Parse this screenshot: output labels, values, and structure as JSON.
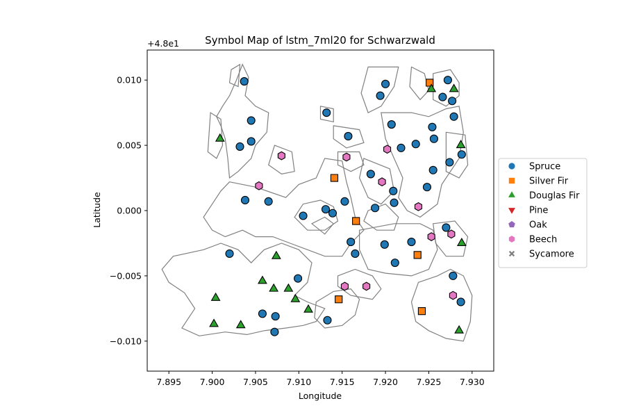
{
  "chart_data": {
    "type": "scatter",
    "title": "Symbol Map of lstm_7ml20 for Schwarzwald",
    "xlabel": "Longitude",
    "ylabel": "Latitude",
    "offset_label": "+4.8e1",
    "xlim": [
      7.8925,
      7.9325
    ],
    "ylim": [
      -0.0123,
      0.0123
    ],
    "xticks": [
      "7.895",
      "7.900",
      "7.905",
      "7.910",
      "7.915",
      "7.920",
      "7.925",
      "7.930"
    ],
    "xtick_values": [
      7.895,
      7.9,
      7.905,
      7.91,
      7.915,
      7.92,
      7.925,
      7.93
    ],
    "yticks": [
      "0.010",
      "0.005",
      "0.000",
      "−0.005",
      "−0.010"
    ],
    "ytick_values": [
      0.01,
      0.005,
      0.0,
      -0.005,
      -0.01
    ],
    "legend_position": "center-right outside",
    "series": [
      {
        "name": "Spruce",
        "marker": "circle",
        "color": "#1f77b4",
        "points": [
          [
            7.9037,
            0.0099
          ],
          [
            7.9045,
            0.0069
          ],
          [
            7.9045,
            0.0053
          ],
          [
            7.9032,
            0.0049
          ],
          [
            7.9038,
            0.0008
          ],
          [
            7.9065,
            0.0007
          ],
          [
            7.9105,
            -0.0004
          ],
          [
            7.9131,
            0.0001
          ],
          [
            7.9139,
            -0.0002
          ],
          [
            7.9153,
            0.0007
          ],
          [
            7.9132,
            0.0075
          ],
          [
            7.9157,
            0.0057
          ],
          [
            7.9183,
            0.0028
          ],
          [
            7.9188,
            0.0002
          ],
          [
            7.9209,
            0.0015
          ],
          [
            7.921,
            0.0006
          ],
          [
            7.92,
            0.0097
          ],
          [
            7.9194,
            0.0088
          ],
          [
            7.9207,
            0.0066
          ],
          [
            7.9218,
            0.0048
          ],
          [
            7.9235,
            0.0051
          ],
          [
            7.9254,
            0.0064
          ],
          [
            7.9256,
            0.0055
          ],
          [
            7.9255,
            0.0031
          ],
          [
            7.9248,
            0.0018
          ],
          [
            7.9272,
            0.01
          ],
          [
            7.9266,
            0.0087
          ],
          [
            7.9277,
            0.0084
          ],
          [
            7.9279,
            0.0072
          ],
          [
            7.9274,
            0.0037
          ],
          [
            7.9288,
            0.0043
          ],
          [
            7.916,
            -0.0024
          ],
          [
            7.9165,
            -0.0033
          ],
          [
            7.9199,
            -0.0026
          ],
          [
            7.923,
            -0.0024
          ],
          [
            7.9211,
            -0.004
          ],
          [
            7.927,
            -0.0013
          ],
          [
            7.9278,
            -0.005
          ],
          [
            7.9287,
            -0.007
          ],
          [
            7.9099,
            -0.0052
          ],
          [
            7.902,
            -0.0033
          ],
          [
            7.9058,
            -0.0079
          ],
          [
            7.9073,
            -0.0081
          ],
          [
            7.9072,
            -0.0093
          ],
          [
            7.9133,
            -0.0084
          ]
        ]
      },
      {
        "name": "Silver Fir",
        "marker": "square",
        "color": "#ff7f0e",
        "points": [
          [
            7.9141,
            0.0025
          ],
          [
            7.9166,
            -0.0008
          ],
          [
            7.9251,
            0.0098
          ],
          [
            7.9237,
            -0.0034
          ],
          [
            7.9146,
            -0.0068
          ],
          [
            7.9242,
            -0.0077
          ]
        ]
      },
      {
        "name": "Douglas Fir",
        "marker": "triangle-up",
        "color": "#2ca02c",
        "points": [
          [
            7.9009,
            0.0055
          ],
          [
            7.9253,
            0.0093
          ],
          [
            7.9279,
            0.0093
          ],
          [
            7.9287,
            0.005
          ],
          [
            7.9288,
            -0.0025
          ],
          [
            7.9074,
            -0.0035
          ],
          [
            7.9058,
            -0.0054
          ],
          [
            7.9071,
            -0.006
          ],
          [
            7.9088,
            -0.006
          ],
          [
            7.9096,
            -0.0068
          ],
          [
            7.9004,
            -0.0067
          ],
          [
            7.9002,
            -0.0087
          ],
          [
            7.9033,
            -0.0088
          ],
          [
            7.9111,
            -0.0076
          ],
          [
            7.9285,
            -0.0092
          ]
        ]
      },
      {
        "name": "Pine",
        "marker": "triangle-down",
        "color": "#d62728",
        "points": []
      },
      {
        "name": "Oak",
        "marker": "pentagon",
        "color": "#9467bd",
        "points": []
      },
      {
        "name": "Beech",
        "marker": "hexagon",
        "color": "#e377c2",
        "points": [
          [
            7.908,
            0.0042
          ],
          [
            7.9155,
            0.0041
          ],
          [
            7.9054,
            0.0019
          ],
          [
            7.9202,
            0.0047
          ],
          [
            7.9196,
            0.0022
          ],
          [
            7.9238,
            0.0003
          ],
          [
            7.9253,
            -0.002
          ],
          [
            7.9276,
            -0.0018
          ],
          [
            7.9278,
            -0.0065
          ],
          [
            7.9153,
            -0.0058
          ],
          [
            7.9178,
            -0.0058
          ]
        ]
      },
      {
        "name": "Sycamore",
        "marker": "x",
        "color": "#7f7f7f",
        "points": []
      }
    ],
    "polygons": [
      [
        [
          7.9035,
          0.0112
        ],
        [
          7.9042,
          0.0102
        ],
        [
          7.9038,
          0.0088
        ],
        [
          7.905,
          0.008
        ],
        [
          7.9065,
          0.0075
        ],
        [
          7.9063,
          0.006
        ],
        [
          7.905,
          0.005
        ],
        [
          7.9045,
          0.004
        ],
        [
          7.903,
          0.003
        ],
        [
          7.902,
          0.0025
        ],
        [
          7.9018,
          0.004
        ],
        [
          7.9015,
          0.0055
        ],
        [
          7.901,
          0.0065
        ],
        [
          7.9005,
          0.0072
        ],
        [
          7.9012,
          0.008
        ],
        [
          7.902,
          0.0088
        ],
        [
          7.9028,
          0.01
        ]
      ],
      [
        [
          7.9022,
          0.0108
        ],
        [
          7.9032,
          0.0112
        ],
        [
          7.903,
          0.0095
        ],
        [
          7.902,
          0.0098
        ]
      ],
      [
        [
          7.8998,
          0.0075
        ],
        [
          7.901,
          0.007
        ],
        [
          7.9012,
          0.005
        ],
        [
          7.9005,
          0.004
        ],
        [
          7.8995,
          0.0045
        ]
      ],
      [
        [
          7.902,
          0.0022
        ],
        [
          7.905,
          0.0018
        ],
        [
          7.9085,
          0.001
        ],
        [
          7.91,
          0.002
        ],
        [
          7.912,
          0.0025
        ],
        [
          7.913,
          0.004
        ],
        [
          7.915,
          0.0038
        ],
        [
          7.9155,
          0.0022
        ],
        [
          7.916,
          0.001
        ],
        [
          7.9165,
          -0.0005
        ],
        [
          7.9175,
          -0.0015
        ],
        [
          7.916,
          -0.0025
        ],
        [
          7.915,
          -0.0035
        ],
        [
          7.913,
          -0.0035
        ],
        [
          7.911,
          -0.003
        ],
        [
          7.909,
          -0.0025
        ],
        [
          7.907,
          -0.002
        ],
        [
          7.905,
          -0.002
        ],
        [
          7.9035,
          -0.0015
        ],
        [
          7.9015,
          -0.002
        ],
        [
          7.9,
          -0.0015
        ],
        [
          7.899,
          -0.0005
        ],
        [
          7.9,
          0.0005
        ],
        [
          7.901,
          0.0015
        ]
      ],
      [
        [
          7.9095,
          -0.0005
        ],
        [
          7.9105,
          0.0005
        ],
        [
          7.9125,
          0.0008
        ],
        [
          7.914,
          0.0003
        ],
        [
          7.9145,
          -0.0008
        ],
        [
          7.913,
          -0.0015
        ],
        [
          7.911,
          -0.0015
        ]
      ],
      [
        [
          7.9115,
          -0.001
        ],
        [
          7.913,
          -0.0005
        ],
        [
          7.914,
          -0.001
        ],
        [
          7.913,
          -0.0018
        ]
      ],
      [
        [
          7.9072,
          0.005
        ],
        [
          7.9092,
          0.0045
        ],
        [
          7.9095,
          0.003
        ],
        [
          7.908,
          0.0028
        ],
        [
          7.9065,
          0.0035
        ]
      ],
      [
        [
          7.9125,
          0.008
        ],
        [
          7.914,
          0.0078
        ],
        [
          7.914,
          0.0068
        ],
        [
          7.9125,
          0.007
        ]
      ],
      [
        [
          7.914,
          0.0065
        ],
        [
          7.917,
          0.0062
        ],
        [
          7.9175,
          0.0052
        ],
        [
          7.9155,
          0.0048
        ],
        [
          7.914,
          0.0055
        ]
      ],
      [
        [
          7.9145,
          0.0045
        ],
        [
          7.917,
          0.0045
        ],
        [
          7.9175,
          0.0035
        ],
        [
          7.916,
          0.003
        ],
        [
          7.9145,
          0.0035
        ]
      ],
      [
        [
          7.9175,
          0.004
        ],
        [
          7.9205,
          0.0032
        ],
        [
          7.921,
          0.0015
        ],
        [
          7.9195,
          0.0005
        ],
        [
          7.918,
          0.001
        ],
        [
          7.917,
          0.0025
        ]
      ],
      [
        [
          7.918,
          0.0
        ],
        [
          7.92,
          0.0005
        ],
        [
          7.9215,
          -0.0005
        ],
        [
          7.921,
          -0.0015
        ],
        [
          7.919,
          -0.0015
        ],
        [
          7.9175,
          -0.0008
        ]
      ],
      [
        [
          7.918,
          0.011
        ],
        [
          7.9215,
          0.011
        ],
        [
          7.921,
          0.0095
        ],
        [
          7.9195,
          0.008
        ],
        [
          7.918,
          0.0075
        ],
        [
          7.9172,
          0.009
        ]
      ],
      [
        [
          7.923,
          0.011
        ],
        [
          7.9245,
          0.0105
        ],
        [
          7.925,
          0.0092
        ],
        [
          7.924,
          0.0085
        ],
        [
          7.9228,
          0.0095
        ]
      ],
      [
        [
          7.9195,
          0.0075
        ],
        [
          7.923,
          0.0075
        ],
        [
          7.925,
          0.0072
        ],
        [
          7.927,
          0.0078
        ],
        [
          7.9285,
          0.008
        ],
        [
          7.929,
          0.006
        ],
        [
          7.9285,
          0.004
        ],
        [
          7.9275,
          0.003
        ],
        [
          7.9265,
          0.002
        ],
        [
          7.926,
          0.0005
        ],
        [
          7.924,
          -0.0005
        ],
        [
          7.9225,
          0.0
        ],
        [
          7.9215,
          0.001
        ],
        [
          7.922,
          0.0025
        ],
        [
          7.921,
          0.004
        ],
        [
          7.92,
          0.0055
        ]
      ],
      [
        [
          7.9255,
          0.0105
        ],
        [
          7.9275,
          0.0108
        ],
        [
          7.9285,
          0.0098
        ],
        [
          7.9285,
          0.0088
        ],
        [
          7.927,
          0.008
        ],
        [
          7.9255,
          0.0085
        ]
      ],
      [
        [
          7.927,
          0.006
        ],
        [
          7.9292,
          0.0058
        ],
        [
          7.9295,
          0.0035
        ],
        [
          7.9285,
          0.0025
        ],
        [
          7.927,
          0.003
        ]
      ],
      [
        [
          7.917,
          -0.0015
        ],
        [
          7.921,
          -0.001
        ],
        [
          7.924,
          -0.001
        ],
        [
          7.9255,
          -0.0015
        ],
        [
          7.926,
          -0.003
        ],
        [
          7.925,
          -0.0045
        ],
        [
          7.923,
          -0.005
        ],
        [
          7.92,
          -0.0048
        ],
        [
          7.918,
          -0.0045
        ],
        [
          7.917,
          -0.003
        ]
      ],
      [
        [
          7.9255,
          -0.001
        ],
        [
          7.928,
          -0.0008
        ],
        [
          7.9295,
          -0.002
        ],
        [
          7.929,
          -0.0035
        ],
        [
          7.927,
          -0.0035
        ],
        [
          7.9258,
          -0.0025
        ]
      ],
      [
        [
          7.9238,
          -0.0055
        ],
        [
          7.926,
          -0.005
        ],
        [
          7.9275,
          -0.0045
        ],
        [
          7.929,
          -0.005
        ],
        [
          7.93,
          -0.0065
        ],
        [
          7.9298,
          -0.0085
        ],
        [
          7.929,
          -0.01
        ],
        [
          7.927,
          -0.0098
        ],
        [
          7.925,
          -0.0092
        ],
        [
          7.9235,
          -0.0085
        ],
        [
          7.923,
          -0.007
        ]
      ],
      [
        [
          7.8955,
          -0.0035
        ],
        [
          7.899,
          -0.003
        ],
        [
          7.901,
          -0.0025
        ],
        [
          7.903,
          -0.003
        ],
        [
          7.9045,
          -0.004
        ],
        [
          7.906,
          -0.003
        ],
        [
          7.908,
          -0.0025
        ],
        [
          7.91,
          -0.003
        ],
        [
          7.9115,
          -0.004
        ],
        [
          7.911,
          -0.0055
        ],
        [
          7.9095,
          -0.0065
        ],
        [
          7.911,
          -0.007
        ],
        [
          7.913,
          -0.0075
        ],
        [
          7.912,
          -0.0085
        ],
        [
          7.9105,
          -0.0088
        ],
        [
          7.9085,
          -0.009
        ],
        [
          7.906,
          -0.0092
        ],
        [
          7.904,
          -0.0095
        ],
        [
          7.9015,
          -0.0093
        ],
        [
          7.8985,
          -0.0096
        ],
        [
          7.8965,
          -0.009
        ],
        [
          7.898,
          -0.0075
        ],
        [
          7.8968,
          -0.0063
        ],
        [
          7.895,
          -0.0055
        ],
        [
          7.8942,
          -0.0045
        ]
      ],
      [
        [
          7.912,
          -0.007
        ],
        [
          7.914,
          -0.0062
        ],
        [
          7.916,
          -0.006
        ],
        [
          7.917,
          -0.0068
        ],
        [
          7.9165,
          -0.008
        ],
        [
          7.915,
          -0.0088
        ],
        [
          7.913,
          -0.009
        ],
        [
          7.9118,
          -0.0082
        ]
      ],
      [
        [
          7.9145,
          -0.005
        ],
        [
          7.9165,
          -0.0045
        ],
        [
          7.9185,
          -0.005
        ],
        [
          7.9195,
          -0.006
        ],
        [
          7.9185,
          -0.0068
        ],
        [
          7.916,
          -0.0065
        ],
        [
          7.9145,
          -0.0058
        ]
      ]
    ]
  }
}
